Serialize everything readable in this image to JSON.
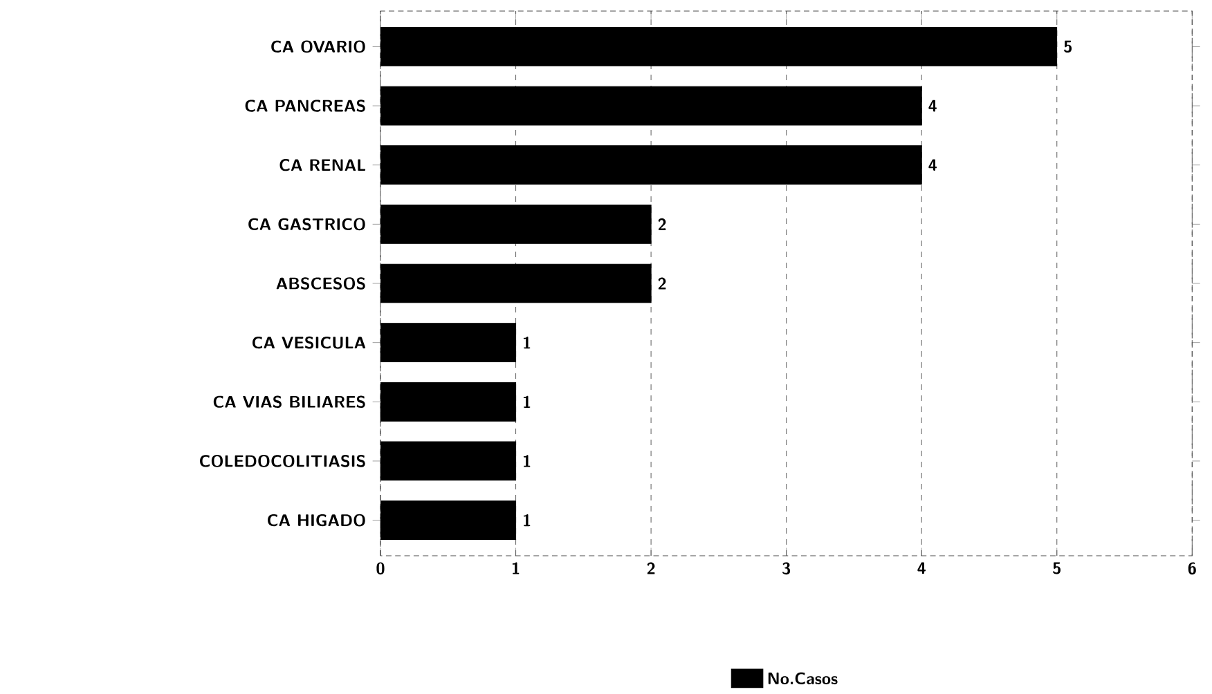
{
  "chart_data": {
    "type": "bar",
    "orientation": "horizontal",
    "categories": [
      "CA OVARIO",
      "CA PANCREAS",
      "CA RENAL",
      "CA GASTRICO",
      "ABSCESOS",
      "CA VESICULA",
      "CA VIAS BILIARES",
      "COLEDOCOLITIASIS",
      "CA HIGADO"
    ],
    "series": [
      {
        "name": "No.Casos",
        "color": "#000000",
        "values": [
          5,
          4,
          4,
          2,
          2,
          1,
          1,
          1,
          1
        ]
      }
    ],
    "xlim": [
      0,
      6
    ],
    "xticks": [
      0,
      1,
      2,
      3,
      4,
      5,
      6
    ],
    "grid": "x",
    "legend": "bottom",
    "data_labels": true
  }
}
